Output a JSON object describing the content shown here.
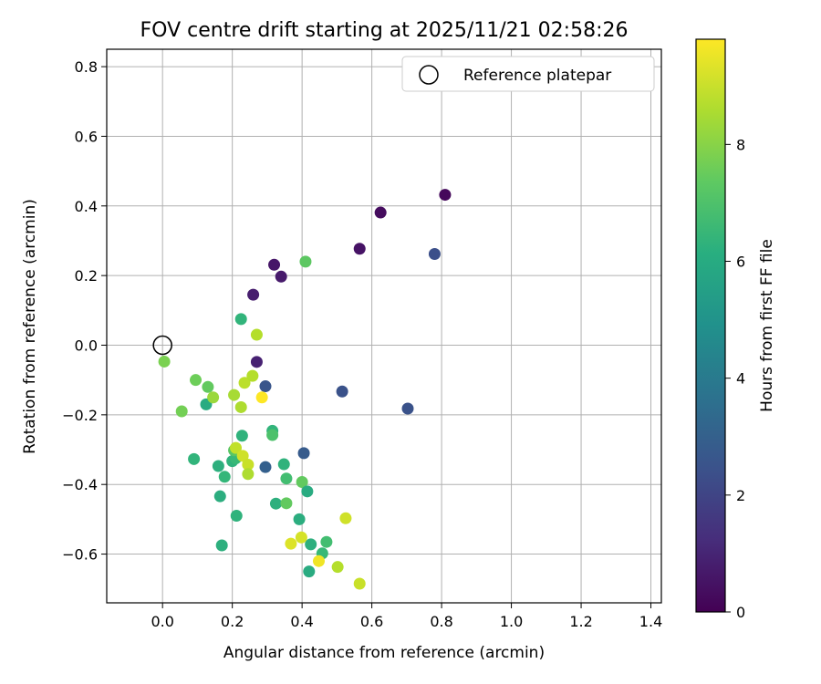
{
  "chart_data": {
    "type": "scatter",
    "title": "FOV centre drift starting at 2025/11/21 02:58:26",
    "xlabel": "Angular distance from reference (arcmin)",
    "ylabel": "Rotation from reference (arcmin)",
    "xlim": [
      -0.16,
      1.43
    ],
    "ylim": [
      -0.74,
      0.85
    ],
    "xticks": [
      0.0,
      0.2,
      0.4,
      0.6,
      0.8,
      1.0,
      1.2,
      1.4
    ],
    "yticks": [
      -0.6,
      -0.4,
      -0.2,
      0.0,
      0.2,
      0.4,
      0.6,
      0.8
    ],
    "xtick_labels": [
      "0.0",
      "0.2",
      "0.4",
      "0.6",
      "0.8",
      "1.0",
      "1.2",
      "1.4"
    ],
    "ytick_labels": [
      "−0.6",
      "−0.4",
      "−0.2",
      "0.0",
      "0.2",
      "0.4",
      "0.6",
      "0.8"
    ],
    "grid": true,
    "legend": {
      "placement": "top-right",
      "entries": [
        {
          "label": "Reference platepar",
          "marker": "open-circle",
          "x": 0.0,
          "y": 0.0
        }
      ]
    },
    "colorbar": {
      "label": "Hours from first FF file",
      "colormap": "viridis",
      "range": [
        0,
        9.8
      ],
      "ticks": [
        0,
        2,
        4,
        6,
        8
      ],
      "tick_labels": [
        "0",
        "2",
        "4",
        "6",
        "8"
      ]
    },
    "series": [
      {
        "points": [
          {
            "x": 0.81,
            "y": 0.432,
            "h": 0.2
          },
          {
            "x": 0.625,
            "y": 0.381,
            "h": 0.3
          },
          {
            "x": 0.565,
            "y": 0.277,
            "h": 0.5
          },
          {
            "x": 0.32,
            "y": 0.231,
            "h": 0.6
          },
          {
            "x": 0.34,
            "y": 0.197,
            "h": 0.7
          },
          {
            "x": 0.26,
            "y": 0.145,
            "h": 0.8
          },
          {
            "x": 0.27,
            "y": -0.048,
            "h": 0.9
          },
          {
            "x": 0.78,
            "y": 0.262,
            "h": 2.4
          },
          {
            "x": 0.515,
            "y": -0.133,
            "h": 2.5
          },
          {
            "x": 0.703,
            "y": -0.182,
            "h": 2.5
          },
          {
            "x": 0.295,
            "y": -0.118,
            "h": 2.6
          },
          {
            "x": 0.405,
            "y": -0.31,
            "h": 2.8
          },
          {
            "x": 0.295,
            "y": -0.35,
            "h": 3.0
          },
          {
            "x": 0.225,
            "y": 0.075,
            "h": 6.4
          },
          {
            "x": 0.125,
            "y": -0.17,
            "h": 6.0
          },
          {
            "x": 0.228,
            "y": -0.26,
            "h": 6.3
          },
          {
            "x": 0.315,
            "y": -0.246,
            "h": 6.4
          },
          {
            "x": 0.315,
            "y": -0.258,
            "h": 7.0
          },
          {
            "x": 0.09,
            "y": -0.327,
            "h": 6.4
          },
          {
            "x": 0.16,
            "y": -0.347,
            "h": 6.2
          },
          {
            "x": 0.2,
            "y": -0.333,
            "h": 6.3
          },
          {
            "x": 0.21,
            "y": -0.325,
            "h": 6.6
          },
          {
            "x": 0.205,
            "y": -0.302,
            "h": 7.2
          },
          {
            "x": 0.178,
            "y": -0.378,
            "h": 6.5
          },
          {
            "x": 0.348,
            "y": -0.342,
            "h": 6.3
          },
          {
            "x": 0.355,
            "y": -0.383,
            "h": 6.8
          },
          {
            "x": 0.4,
            "y": -0.393,
            "h": 7.4
          },
          {
            "x": 0.415,
            "y": -0.42,
            "h": 6.0
          },
          {
            "x": 0.325,
            "y": -0.455,
            "h": 6.2
          },
          {
            "x": 0.355,
            "y": -0.454,
            "h": 7.4
          },
          {
            "x": 0.165,
            "y": -0.434,
            "h": 6.1
          },
          {
            "x": 0.212,
            "y": -0.49,
            "h": 6.3
          },
          {
            "x": 0.392,
            "y": -0.5,
            "h": 6.1
          },
          {
            "x": 0.17,
            "y": -0.575,
            "h": 6.2
          },
          {
            "x": 0.425,
            "y": -0.572,
            "h": 6.2
          },
          {
            "x": 0.47,
            "y": -0.565,
            "h": 6.8
          },
          {
            "x": 0.458,
            "y": -0.598,
            "h": 6.6
          },
          {
            "x": 0.42,
            "y": -0.65,
            "h": 6.0
          },
          {
            "x": 0.41,
            "y": 0.24,
            "h": 7.3
          },
          {
            "x": 0.005,
            "y": -0.047,
            "h": 7.8
          },
          {
            "x": 0.095,
            "y": -0.1,
            "h": 7.6
          },
          {
            "x": 0.13,
            "y": -0.12,
            "h": 7.4
          },
          {
            "x": 0.055,
            "y": -0.19,
            "h": 7.7
          },
          {
            "x": 0.145,
            "y": -0.15,
            "h": 8.3
          },
          {
            "x": 0.205,
            "y": -0.143,
            "h": 8.5
          },
          {
            "x": 0.225,
            "y": -0.178,
            "h": 8.6
          },
          {
            "x": 0.27,
            "y": 0.03,
            "h": 8.7
          },
          {
            "x": 0.235,
            "y": -0.108,
            "h": 8.8
          },
          {
            "x": 0.258,
            "y": -0.088,
            "h": 8.7
          },
          {
            "x": 0.285,
            "y": -0.15,
            "h": 9.8
          },
          {
            "x": 0.21,
            "y": -0.295,
            "h": 8.9
          },
          {
            "x": 0.23,
            "y": -0.318,
            "h": 9.1
          },
          {
            "x": 0.245,
            "y": -0.343,
            "h": 9.0
          },
          {
            "x": 0.245,
            "y": -0.37,
            "h": 8.6
          },
          {
            "x": 0.525,
            "y": -0.497,
            "h": 9.1
          },
          {
            "x": 0.398,
            "y": -0.552,
            "h": 9.2
          },
          {
            "x": 0.368,
            "y": -0.57,
            "h": 9.3
          },
          {
            "x": 0.502,
            "y": -0.637,
            "h": 8.7
          },
          {
            "x": 0.448,
            "y": -0.62,
            "h": 9.6
          },
          {
            "x": 0.565,
            "y": -0.685,
            "h": 9.0
          }
        ]
      }
    ]
  }
}
